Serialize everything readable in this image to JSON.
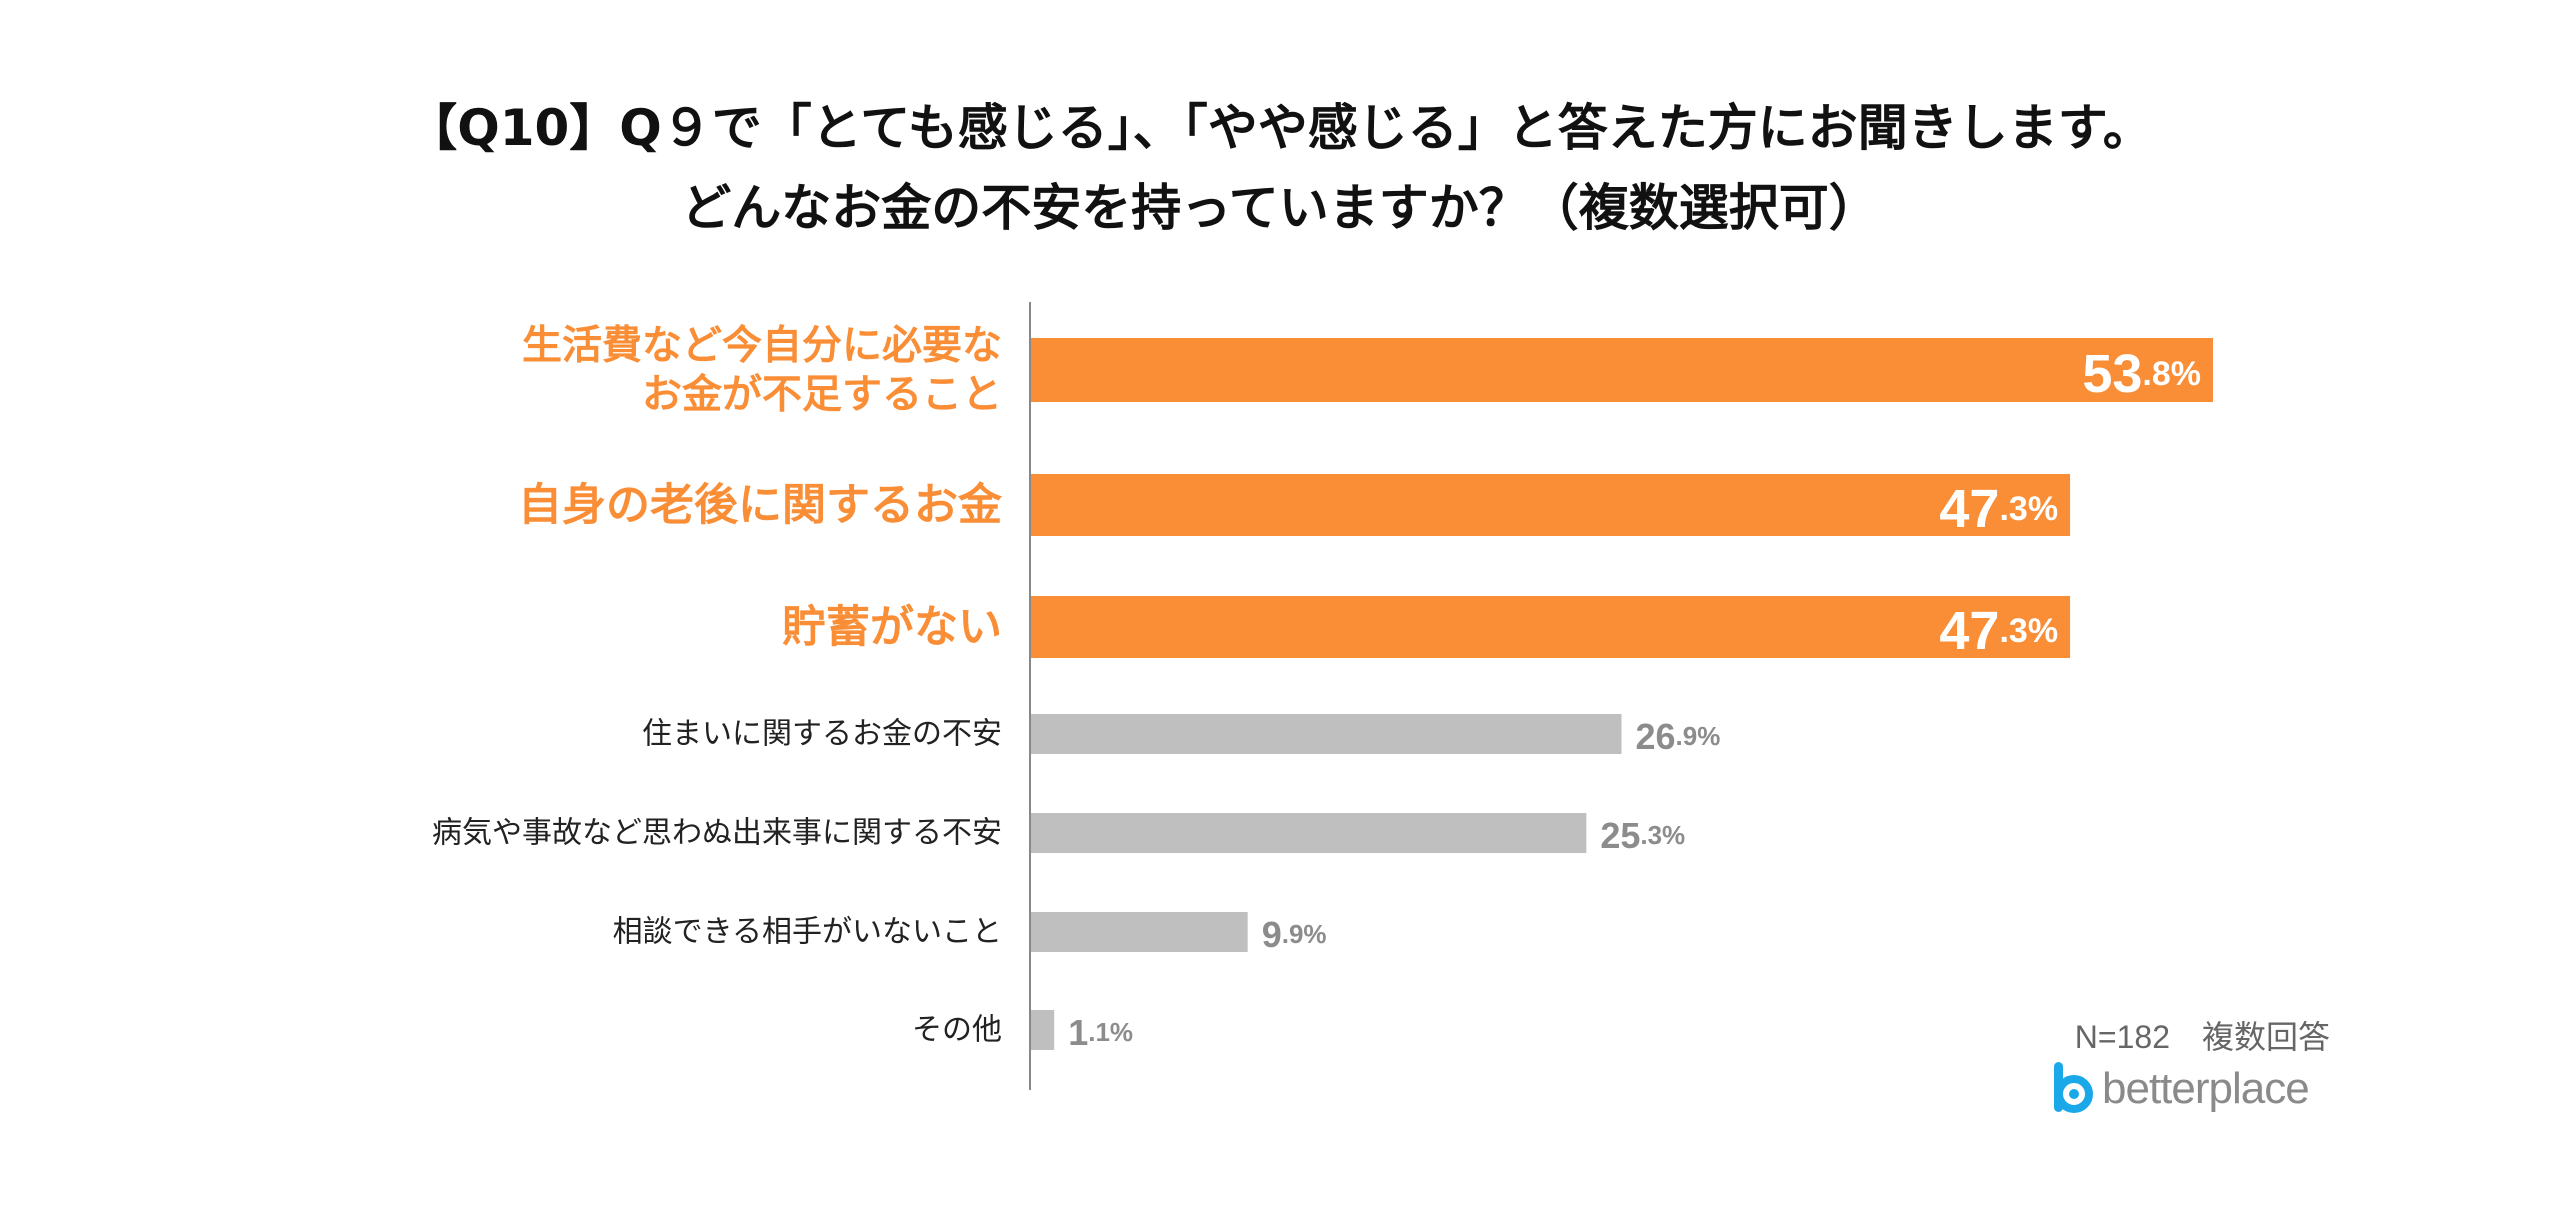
{
  "title": {
    "line1": "【Q10】Q９で「とても感じる」、「やや感じる」と答えた方にお聞きします。",
    "line2": "どんなお金の不安を持っていますか？（複数選択可）"
  },
  "note": "N=182　複数回答",
  "logo": {
    "text": "betterplace",
    "icon": "betterplace-logo-icon"
  },
  "colors": {
    "highlight": "#F98E37",
    "normal": "#BFBFBF",
    "highlight_label": "#F98E37",
    "normal_label": "#222222",
    "normal_value": "#8C8C8C",
    "axis": "#888888"
  },
  "chart_data": {
    "type": "bar",
    "orientation": "horizontal",
    "categories": [
      "生活費など今自分に必要なお金が不足すること",
      "自身の老後に関するお金",
      "貯蓄がない",
      "住まいに関するお金の不安",
      "病気や事故など思わぬ出来事に関する不安",
      "相談できる相手がいないこと",
      "その他"
    ],
    "category_label_lines": [
      [
        "生活費など今自分に必要な",
        "お金が不足すること"
      ],
      [
        "自身の老後に関するお金"
      ],
      [
        "貯蓄がない"
      ],
      [
        "住まいに関するお金の不安"
      ],
      [
        "病気や事故など思わぬ出来事に関する不安"
      ],
      [
        "相談できる相手がいないこと"
      ],
      [
        "その他"
      ]
    ],
    "values": [
      53.8,
      47.3,
      47.3,
      26.9,
      25.3,
      9.9,
      1.1
    ],
    "value_labels": [
      [
        "53",
        ".8%"
      ],
      [
        "47",
        ".3%"
      ],
      [
        "47",
        ".3%"
      ],
      [
        "26",
        ".9%"
      ],
      [
        "25",
        ".3%"
      ],
      [
        "9",
        ".9%"
      ],
      [
        "1",
        ".1%"
      ]
    ],
    "highlighted": [
      true,
      true,
      true,
      false,
      false,
      false,
      false
    ],
    "xlim": [
      0,
      60
    ],
    "grid": false,
    "legend": "none",
    "xlabel": "",
    "ylabel": ""
  }
}
